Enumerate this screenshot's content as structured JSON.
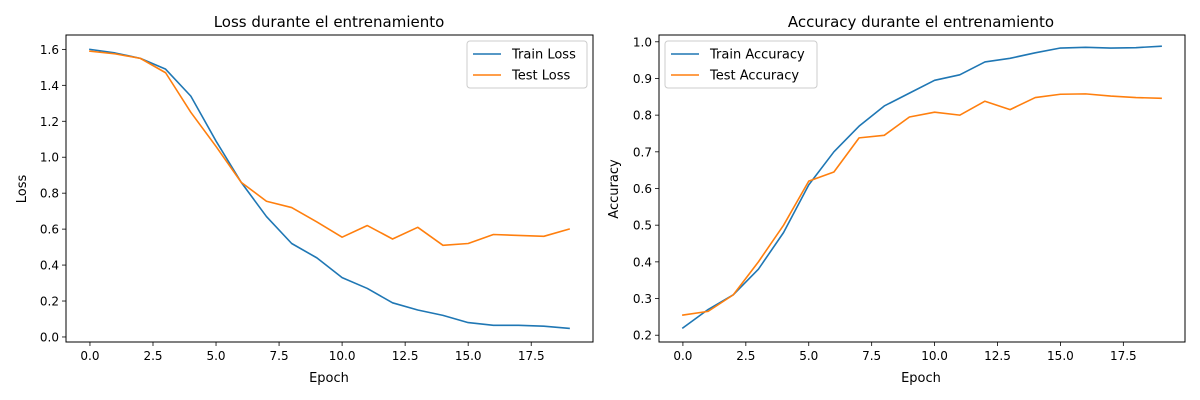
{
  "chart_data": [
    {
      "type": "line",
      "title": "Loss durante el entrenamiento",
      "xlabel": "Epoch",
      "ylabel": "Loss",
      "xlim": [
        -0.95,
        19.95
      ],
      "ylim": [
        -0.028,
        1.68
      ],
      "xticks": [
        0.0,
        2.5,
        5.0,
        7.5,
        10.0,
        12.5,
        15.0,
        17.5
      ],
      "xtick_labels": [
        "0.0",
        "2.5",
        "5.0",
        "7.5",
        "10.0",
        "12.5",
        "15.0",
        "17.5"
      ],
      "yticks": [
        0.0,
        0.2,
        0.4,
        0.6,
        0.8,
        1.0,
        1.2,
        1.4,
        1.6
      ],
      "ytick_labels": [
        "0.0",
        "0.2",
        "0.4",
        "0.6",
        "0.8",
        "1.0",
        "1.2",
        "1.4",
        "1.6"
      ],
      "legend_position": "top-right",
      "grid": false,
      "x": [
        0,
        1,
        2,
        3,
        4,
        5,
        6,
        7,
        8,
        9,
        10,
        11,
        12,
        13,
        14,
        15,
        16,
        17,
        18,
        19
      ],
      "series": [
        {
          "name": "Train Loss",
          "color": "#1f77b4",
          "values": [
            1.6,
            1.58,
            1.55,
            1.49,
            1.34,
            1.09,
            0.86,
            0.67,
            0.52,
            0.44,
            0.33,
            0.27,
            0.19,
            0.15,
            0.12,
            0.08,
            0.065,
            0.065,
            0.06,
            0.048
          ]
        },
        {
          "name": "Test Loss",
          "color": "#ff7f0e",
          "values": [
            1.59,
            1.575,
            1.55,
            1.47,
            1.25,
            1.06,
            0.86,
            0.755,
            0.72,
            0.64,
            0.555,
            0.62,
            0.545,
            0.61,
            0.51,
            0.52,
            0.57,
            0.565,
            0.56,
            0.6
          ]
        }
      ]
    },
    {
      "type": "line",
      "title": "Accuracy durante el entrenamiento",
      "xlabel": "Epoch",
      "ylabel": "Accuracy",
      "xlim": [
        -0.95,
        19.95
      ],
      "ylim": [
        0.1815,
        1.0185
      ],
      "xticks": [
        0.0,
        2.5,
        5.0,
        7.5,
        10.0,
        12.5,
        15.0,
        17.5
      ],
      "xtick_labels": [
        "0.0",
        "2.5",
        "5.0",
        "7.5",
        "10.0",
        "12.5",
        "15.0",
        "17.5"
      ],
      "yticks": [
        0.2,
        0.3,
        0.4,
        0.5,
        0.6,
        0.7,
        0.8,
        0.9,
        1.0
      ],
      "ytick_labels": [
        "0.2",
        "0.3",
        "0.4",
        "0.5",
        "0.6",
        "0.7",
        "0.8",
        "0.9",
        "1.0"
      ],
      "legend_position": "top-left",
      "grid": false,
      "x": [
        0,
        1,
        2,
        3,
        4,
        5,
        6,
        7,
        8,
        9,
        10,
        11,
        12,
        13,
        14,
        15,
        16,
        17,
        18,
        19
      ],
      "series": [
        {
          "name": "Train Accuracy",
          "color": "#1f77b4",
          "values": [
            0.22,
            0.27,
            0.31,
            0.38,
            0.48,
            0.61,
            0.7,
            0.77,
            0.825,
            0.86,
            0.895,
            0.91,
            0.945,
            0.955,
            0.97,
            0.983,
            0.985,
            0.983,
            0.984,
            0.988
          ]
        },
        {
          "name": "Test Accuracy",
          "color": "#ff7f0e",
          "values": [
            0.255,
            0.265,
            0.31,
            0.4,
            0.5,
            0.62,
            0.645,
            0.738,
            0.745,
            0.795,
            0.808,
            0.8,
            0.838,
            0.815,
            0.848,
            0.857,
            0.858,
            0.852,
            0.848,
            0.846
          ]
        }
      ]
    }
  ]
}
